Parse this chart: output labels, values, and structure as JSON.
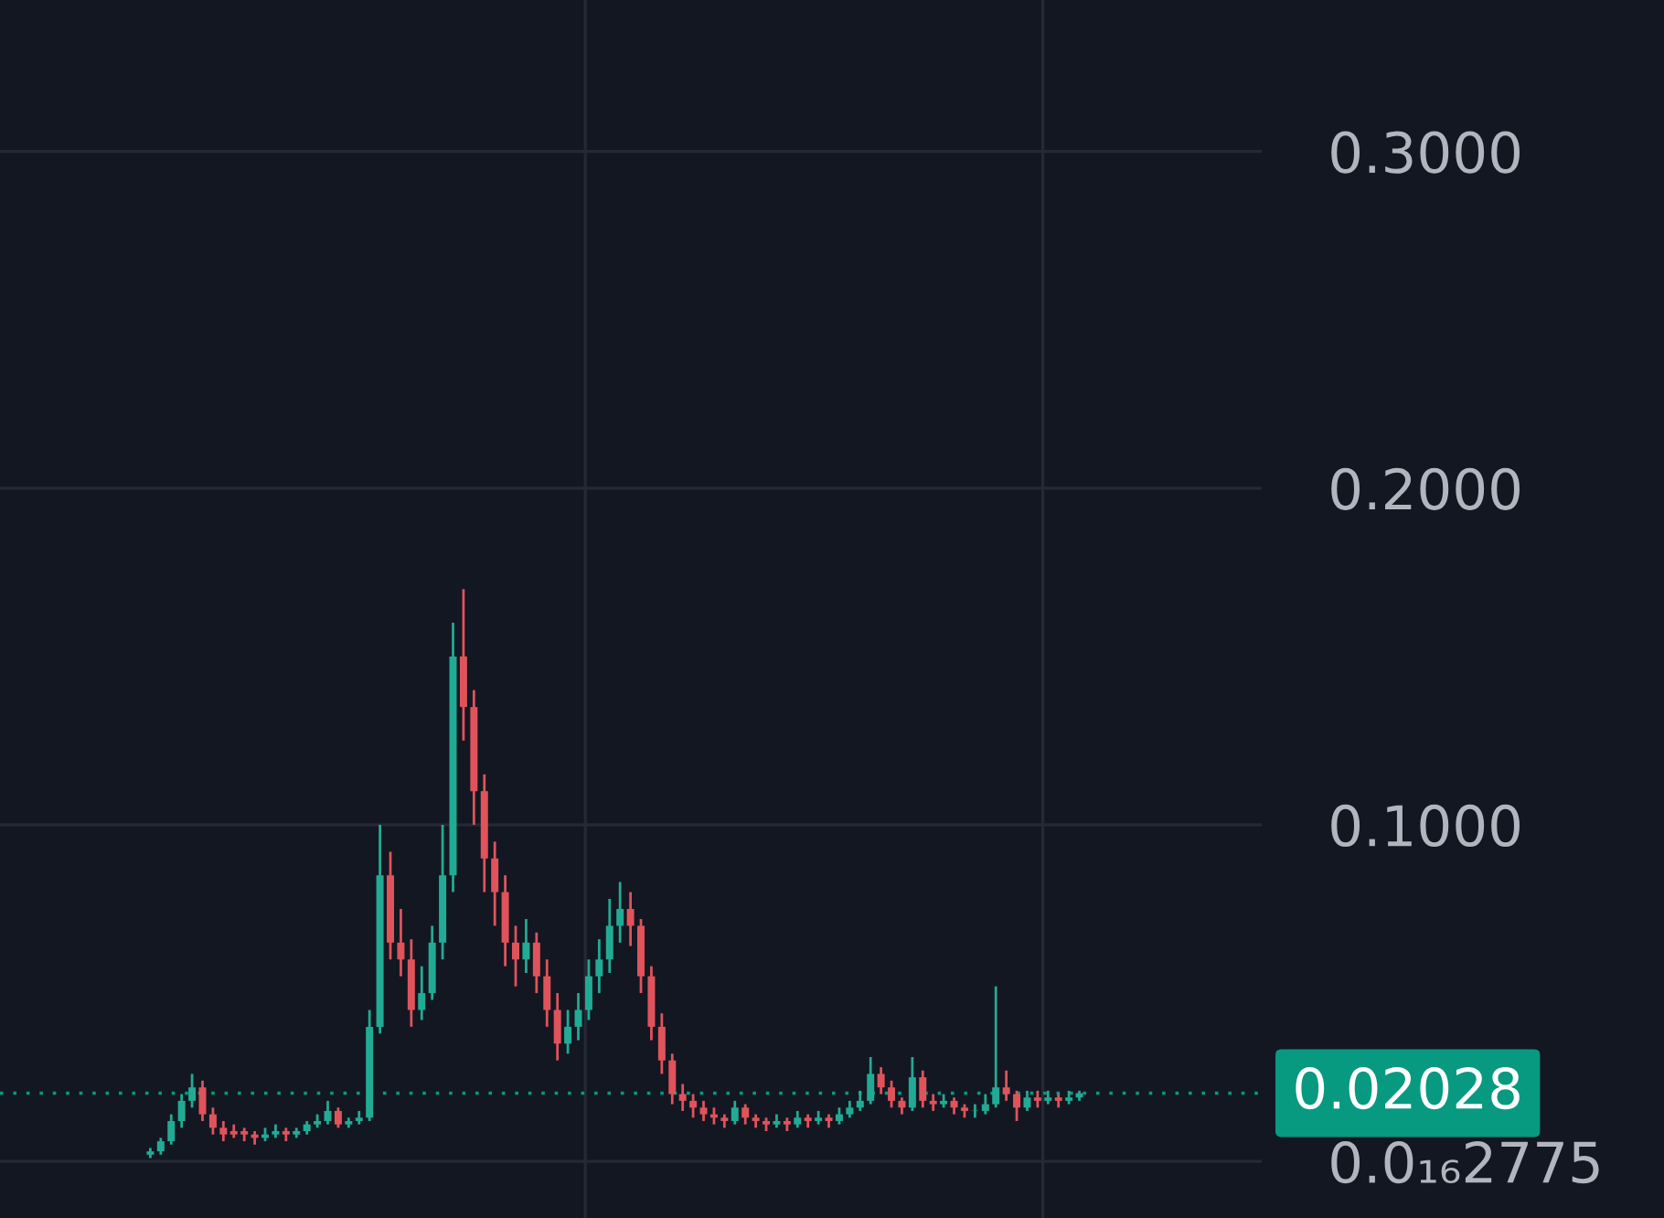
{
  "chart_data": {
    "type": "candlestick",
    "categories": [
      null,
      null,
      null,
      null,
      null,
      null,
      null,
      null,
      null,
      null,
      null,
      null,
      null,
      null,
      null,
      null,
      null,
      null,
      null,
      null,
      null,
      null,
      null,
      null,
      null,
      null,
      null,
      null,
      null,
      null,
      null,
      null,
      null,
      null,
      null,
      null,
      null,
      null,
      null,
      null,
      null,
      null,
      null,
      null,
      null,
      null,
      null,
      null,
      null,
      null,
      null,
      null,
      null,
      null,
      null,
      null,
      null,
      null,
      null,
      null,
      null,
      null,
      null,
      null,
      null,
      null,
      null,
      null,
      null,
      null,
      null,
      null,
      null,
      null,
      null,
      null,
      null,
      null,
      null,
      null,
      null,
      null,
      null,
      null,
      null,
      null,
      null,
      null,
      null,
      null
    ],
    "ohlc": [
      [
        0.002,
        0.004,
        0.001,
        0.003
      ],
      [
        0.003,
        0.007,
        0.002,
        0.006
      ],
      [
        0.006,
        0.014,
        0.005,
        0.012
      ],
      [
        0.012,
        0.02,
        0.01,
        0.018
      ],
      [
        0.018,
        0.026,
        0.016,
        0.022
      ],
      [
        0.022,
        0.024,
        0.012,
        0.014
      ],
      [
        0.014,
        0.016,
        0.008,
        0.01
      ],
      [
        0.01,
        0.012,
        0.006,
        0.008
      ],
      [
        0.008,
        0.011,
        0.007,
        0.009
      ],
      [
        0.009,
        0.01,
        0.006,
        0.008
      ],
      [
        0.008,
        0.009,
        0.005,
        0.007
      ],
      [
        0.007,
        0.01,
        0.006,
        0.008
      ],
      [
        0.008,
        0.011,
        0.007,
        0.009
      ],
      [
        0.009,
        0.01,
        0.006,
        0.008
      ],
      [
        0.008,
        0.01,
        0.007,
        0.009
      ],
      [
        0.009,
        0.012,
        0.008,
        0.011
      ],
      [
        0.011,
        0.014,
        0.01,
        0.012
      ],
      [
        0.012,
        0.018,
        0.011,
        0.015
      ],
      [
        0.015,
        0.016,
        0.01,
        0.011
      ],
      [
        0.011,
        0.013,
        0.01,
        0.012
      ],
      [
        0.012,
        0.015,
        0.011,
        0.013
      ],
      [
        0.013,
        0.045,
        0.012,
        0.04
      ],
      [
        0.04,
        0.1,
        0.038,
        0.085
      ],
      [
        0.085,
        0.092,
        0.06,
        0.065
      ],
      [
        0.065,
        0.075,
        0.055,
        0.06
      ],
      [
        0.06,
        0.066,
        0.04,
        0.045
      ],
      [
        0.045,
        0.058,
        0.042,
        0.05
      ],
      [
        0.05,
        0.07,
        0.048,
        0.065
      ],
      [
        0.065,
        0.1,
        0.06,
        0.085
      ],
      [
        0.085,
        0.16,
        0.08,
        0.15
      ],
      [
        0.15,
        0.17,
        0.125,
        0.135
      ],
      [
        0.135,
        0.14,
        0.1,
        0.11
      ],
      [
        0.11,
        0.115,
        0.08,
        0.09
      ],
      [
        0.09,
        0.095,
        0.07,
        0.08
      ],
      [
        0.08,
        0.085,
        0.058,
        0.065
      ],
      [
        0.065,
        0.07,
        0.052,
        0.06
      ],
      [
        0.06,
        0.072,
        0.056,
        0.065
      ],
      [
        0.065,
        0.068,
        0.05,
        0.055
      ],
      [
        0.055,
        0.06,
        0.04,
        0.045
      ],
      [
        0.045,
        0.05,
        0.03,
        0.035
      ],
      [
        0.035,
        0.045,
        0.032,
        0.04
      ],
      [
        0.04,
        0.05,
        0.036,
        0.045
      ],
      [
        0.045,
        0.06,
        0.042,
        0.055
      ],
      [
        0.055,
        0.066,
        0.05,
        0.06
      ],
      [
        0.06,
        0.078,
        0.056,
        0.07
      ],
      [
        0.07,
        0.083,
        0.065,
        0.075
      ],
      [
        0.075,
        0.08,
        0.064,
        0.07
      ],
      [
        0.07,
        0.072,
        0.05,
        0.055
      ],
      [
        0.055,
        0.058,
        0.036,
        0.04
      ],
      [
        0.04,
        0.044,
        0.026,
        0.03
      ],
      [
        0.03,
        0.032,
        0.017,
        0.02
      ],
      [
        0.02,
        0.023,
        0.015,
        0.018
      ],
      [
        0.018,
        0.02,
        0.013,
        0.016
      ],
      [
        0.016,
        0.018,
        0.012,
        0.014
      ],
      [
        0.014,
        0.016,
        0.011,
        0.013
      ],
      [
        0.013,
        0.014,
        0.01,
        0.012
      ],
      [
        0.012,
        0.018,
        0.011,
        0.016
      ],
      [
        0.016,
        0.017,
        0.011,
        0.013
      ],
      [
        0.013,
        0.014,
        0.01,
        0.012
      ],
      [
        0.012,
        0.013,
        0.009,
        0.011
      ],
      [
        0.011,
        0.014,
        0.01,
        0.012
      ],
      [
        0.012,
        0.013,
        0.009,
        0.011
      ],
      [
        0.011,
        0.015,
        0.01,
        0.013
      ],
      [
        0.013,
        0.014,
        0.01,
        0.012
      ],
      [
        0.012,
        0.015,
        0.011,
        0.013
      ],
      [
        0.013,
        0.014,
        0.01,
        0.012
      ],
      [
        0.012,
        0.016,
        0.011,
        0.014
      ],
      [
        0.014,
        0.018,
        0.013,
        0.016
      ],
      [
        0.016,
        0.021,
        0.015,
        0.018
      ],
      [
        0.018,
        0.031,
        0.017,
        0.026
      ],
      [
        0.026,
        0.028,
        0.02,
        0.022
      ],
      [
        0.022,
        0.024,
        0.016,
        0.018
      ],
      [
        0.018,
        0.019,
        0.014,
        0.016
      ],
      [
        0.016,
        0.031,
        0.015,
        0.025
      ],
      [
        0.025,
        0.027,
        0.016,
        0.018
      ],
      [
        0.018,
        0.02,
        0.015,
        0.017
      ],
      [
        0.017,
        0.02,
        0.016,
        0.018
      ],
      [
        0.018,
        0.019,
        0.014,
        0.016
      ],
      [
        0.016,
        0.017,
        0.013,
        0.015
      ],
      [
        0.015,
        0.017,
        0.013,
        0.015
      ],
      [
        0.015,
        0.02,
        0.014,
        0.017
      ],
      [
        0.017,
        0.052,
        0.016,
        0.022
      ],
      [
        0.022,
        0.027,
        0.018,
        0.02
      ],
      [
        0.02,
        0.021,
        0.012,
        0.016
      ],
      [
        0.016,
        0.021,
        0.015,
        0.019
      ],
      [
        0.019,
        0.021,
        0.016,
        0.018
      ],
      [
        0.018,
        0.021,
        0.017,
        0.019
      ],
      [
        0.019,
        0.02,
        0.016,
        0.018
      ],
      [
        0.018,
        0.021,
        0.017,
        0.019
      ],
      [
        0.019,
        0.021,
        0.018,
        0.02028
      ]
    ],
    "colors": [
      "#22ab94",
      "#22ab94",
      "#22ab94",
      "#22ab94",
      "#22ab94",
      "#e0535b",
      "#e0535b",
      "#e0535b",
      "#e0535b",
      "#e0535b",
      "#e0535b",
      "#22ab94",
      "#22ab94",
      "#e0535b",
      "#22ab94",
      "#22ab94",
      "#22ab94",
      "#22ab94",
      "#e0535b",
      "#22ab94",
      "#22ab94",
      "#22ab94",
      "#22ab94",
      "#e0535b",
      "#e0535b",
      "#e0535b",
      "#22ab94",
      "#22ab94",
      "#22ab94",
      "#22ab94",
      "#e0535b",
      "#e0535b",
      "#e0535b",
      "#e0535b",
      "#e0535b",
      "#e0535b",
      "#22ab94",
      "#e0535b",
      "#e0535b",
      "#e0535b",
      "#22ab94",
      "#22ab94",
      "#22ab94",
      "#22ab94",
      "#22ab94",
      "#22ab94",
      "#e0535b",
      "#e0535b",
      "#e0535b",
      "#e0535b",
      "#e0535b",
      "#e0535b",
      "#e0535b",
      "#e0535b",
      "#e0535b",
      "#e0535b",
      "#22ab94",
      "#e0535b",
      "#e0535b",
      "#e0535b",
      "#22ab94",
      "#e0535b",
      "#22ab94",
      "#e0535b",
      "#22ab94",
      "#e0535b",
      "#22ab94",
      "#22ab94",
      "#22ab94",
      "#22ab94",
      "#e0535b",
      "#e0535b",
      "#e0535b",
      "#22ab94",
      "#e0535b",
      "#e0535b",
      "#22ab94",
      "#e0535b",
      "#e0535b",
      "#22ab94",
      "#22ab94",
      "#22ab94",
      "#e0535b",
      "#e0535b",
      "#22ab94",
      "#e0535b",
      "#22ab94",
      "#e0535b",
      "#22ab94",
      "#22ab94"
    ],
    "ylim": [
      -0.0168,
      0.345
    ],
    "yticks": [
      {
        "value": 2.775e-17,
        "label": "0.0₁₆2775"
      },
      {
        "value": 0.1,
        "label": "0.1000"
      },
      {
        "value": 0.2,
        "label": "0.2000"
      },
      {
        "value": 0.3,
        "label": "0.3000"
      }
    ],
    "ref_lines": [
      {
        "axis": "y",
        "value": 0.02028,
        "label": "0.02028",
        "color": "#089981",
        "line_style": "dotted"
      }
    ],
    "grid": true
  }
}
